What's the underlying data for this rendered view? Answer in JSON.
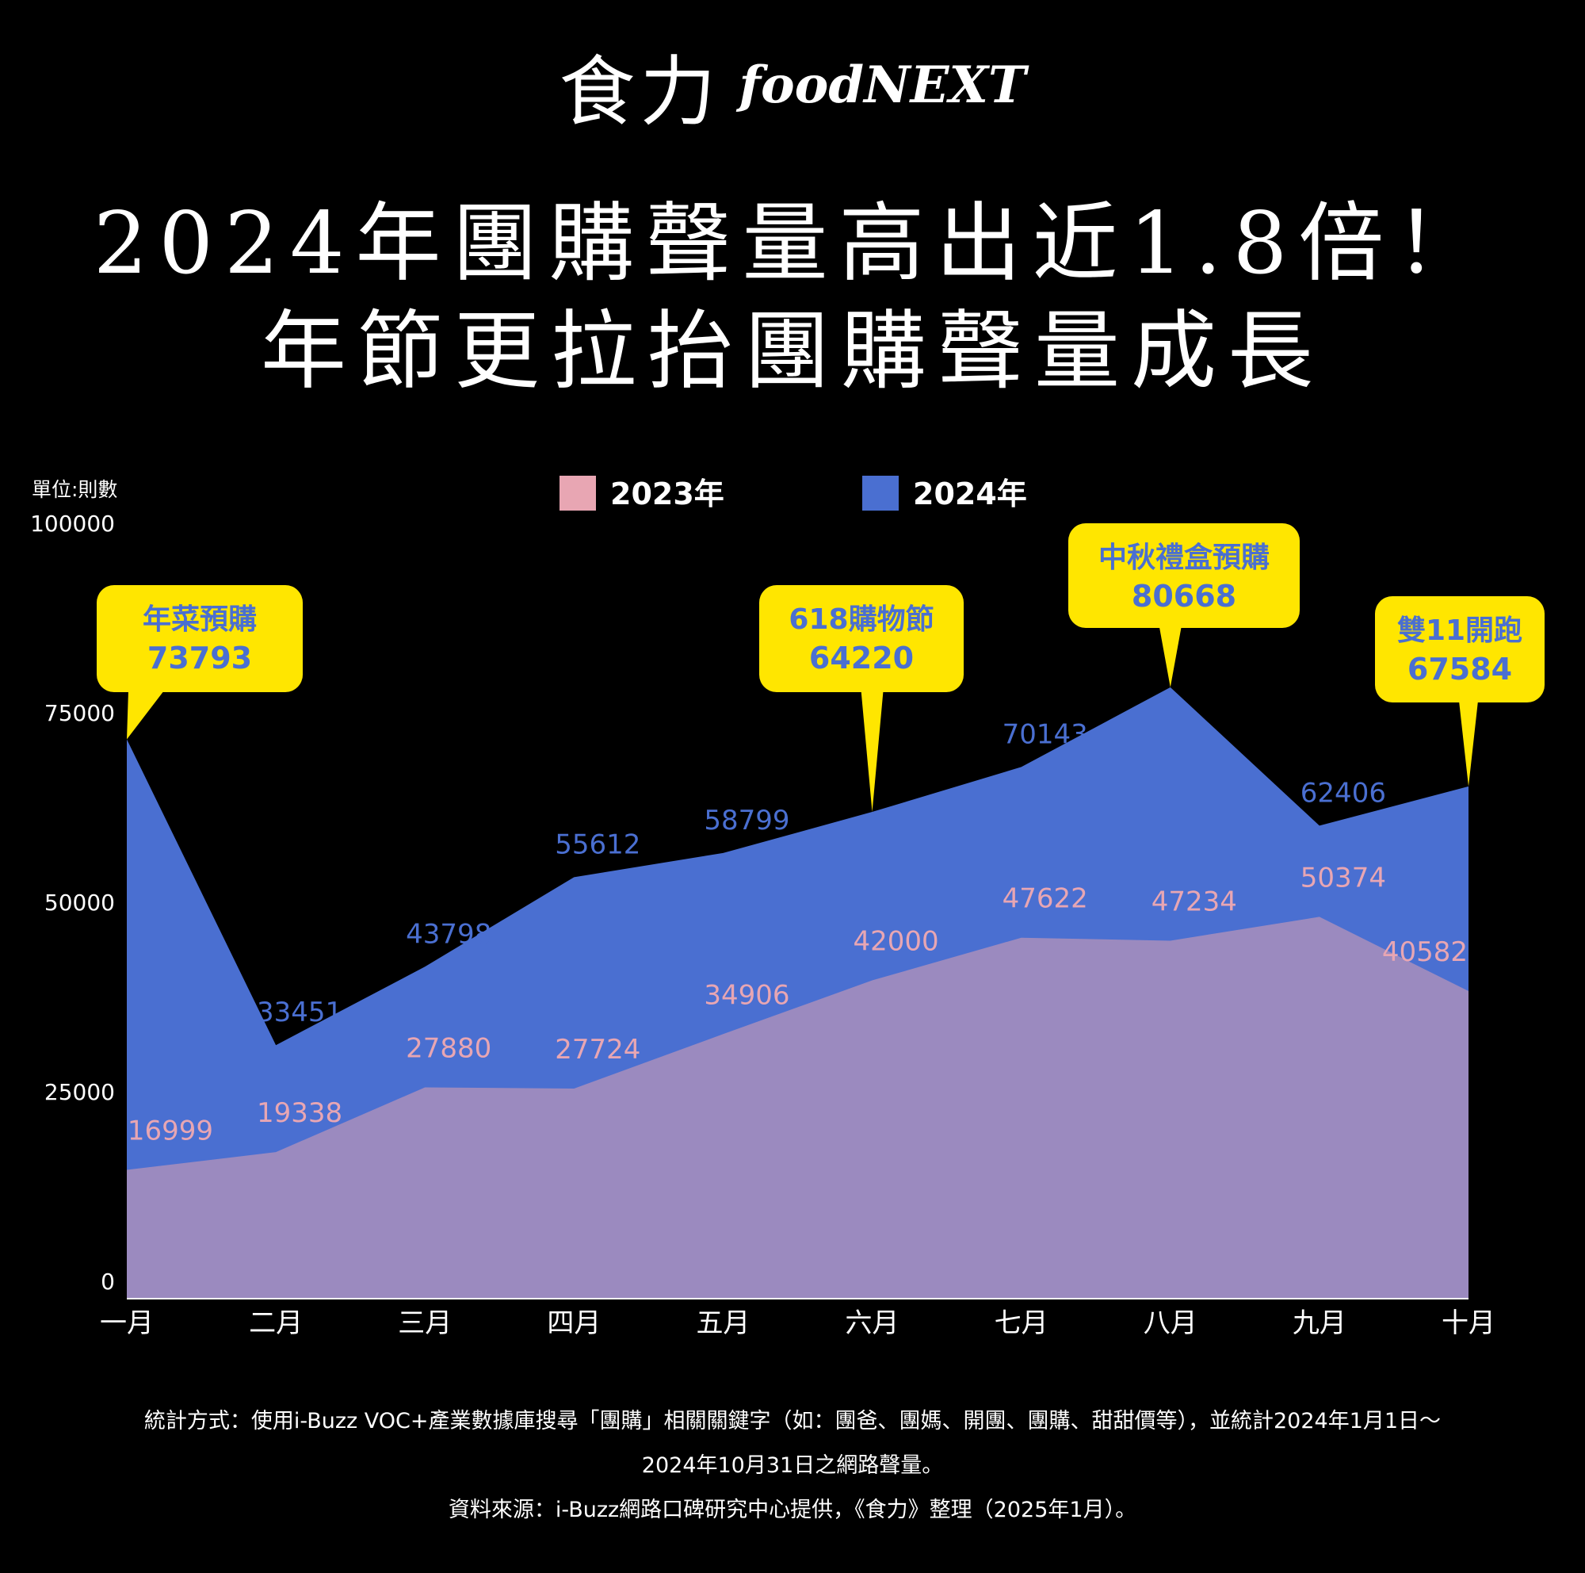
{
  "brand": {
    "name_cn": "食力",
    "name_en": "foodNEXT"
  },
  "title_lines": [
    "2024年團購聲量高出近1.8倍！",
    "年節更拉抬團購聲量成長"
  ],
  "unit_label": "單位:則數",
  "colors": {
    "background": "#000000",
    "series_2023": "#E8A6B3",
    "series_2024": "#4A6FD1",
    "area_2023": "#9B8ABF",
    "callout": "#FFE600",
    "callout_text": "#4A6FD1"
  },
  "chart_data": {
    "type": "area",
    "categories": [
      "一月",
      "二月",
      "三月",
      "四月",
      "五月",
      "六月",
      "七月",
      "八月",
      "九月",
      "十月"
    ],
    "series": [
      {
        "name": "2023年",
        "values": [
          16999,
          19338,
          27880,
          27724,
          34906,
          42000,
          47622,
          47234,
          50374,
          40582
        ]
      },
      {
        "name": "2024年",
        "values": [
          73793,
          33451,
          43798,
          55612,
          58799,
          64220,
          70143,
          80668,
          62406,
          67584
        ]
      }
    ],
    "y_ticks": [
      0,
      25000,
      50000,
      75000,
      100000
    ],
    "ylim": [
      0,
      100000
    ],
    "legend_position": "top-center",
    "grid": false,
    "callouts": [
      {
        "index": 0,
        "series": 1,
        "label": "年菜預購",
        "value": "73793"
      },
      {
        "index": 5,
        "series": 1,
        "label": "618購物節",
        "value": "64220"
      },
      {
        "index": 7,
        "series": 1,
        "label": "中秋禮盒預購",
        "value": "80668"
      },
      {
        "index": 9,
        "series": 1,
        "label": "雙11開跑",
        "value": "67584"
      }
    ]
  },
  "footer_lines": [
    "統計方式：使用i-Buzz VOC+產業數據庫搜尋「團購」相關關鍵字（如：團爸、團媽、開團、團購、甜甜價等），並統計2024年1月1日～",
    "2024年10月31日之網路聲量。",
    "資料來源：i-Buzz網路口碑研究中心提供，《食力》整理（2025年1月）。"
  ]
}
